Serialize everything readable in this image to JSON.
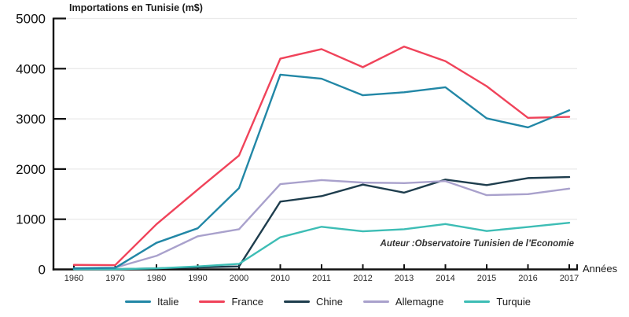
{
  "chart_data": {
    "type": "line",
    "title": "Importations en Tunisie (m$)",
    "xlabel": "Années",
    "ylabel": "",
    "annotation": "Auteur :Observatoire Tunisien de l’Economie",
    "ylim": [
      0,
      5000
    ],
    "yticks": [
      0,
      1000,
      2000,
      3000,
      4000,
      5000
    ],
    "categories": [
      "1960",
      "1970",
      "1980",
      "1990",
      "2000",
      "2010",
      "2011",
      "2012",
      "2013",
      "2014",
      "2015",
      "2016",
      "2017"
    ],
    "grid": "horizontal",
    "legend_position": "bottom",
    "series": [
      {
        "name": "Italie",
        "color": "#2287a6",
        "values": [
          20,
          30,
          530,
          820,
          1620,
          3880,
          3800,
          3470,
          3530,
          3630,
          3010,
          2830,
          3170
        ]
      },
      {
        "name": "France",
        "color": "#f0435a",
        "values": [
          90,
          85,
          900,
          1590,
          2270,
          4200,
          4390,
          4030,
          4440,
          4150,
          3650,
          3020,
          3040
        ]
      },
      {
        "name": "Chine",
        "color": "#1e3d4d",
        "values": [
          5,
          5,
          20,
          40,
          60,
          1350,
          1460,
          1690,
          1530,
          1790,
          1680,
          1820,
          1840
        ]
      },
      {
        "name": "Allemagne",
        "color": "#a9a1cc",
        "values": [
          25,
          35,
          270,
          660,
          800,
          1700,
          1780,
          1730,
          1720,
          1760,
          1480,
          1500,
          1610
        ]
      },
      {
        "name": "Turquie",
        "color": "#3dbdb5",
        "values": [
          5,
          5,
          20,
          60,
          110,
          640,
          850,
          760,
          800,
          905,
          765,
          845,
          930
        ]
      }
    ],
    "axis_color": "#111111",
    "gridline_color": "#eaeaea"
  }
}
